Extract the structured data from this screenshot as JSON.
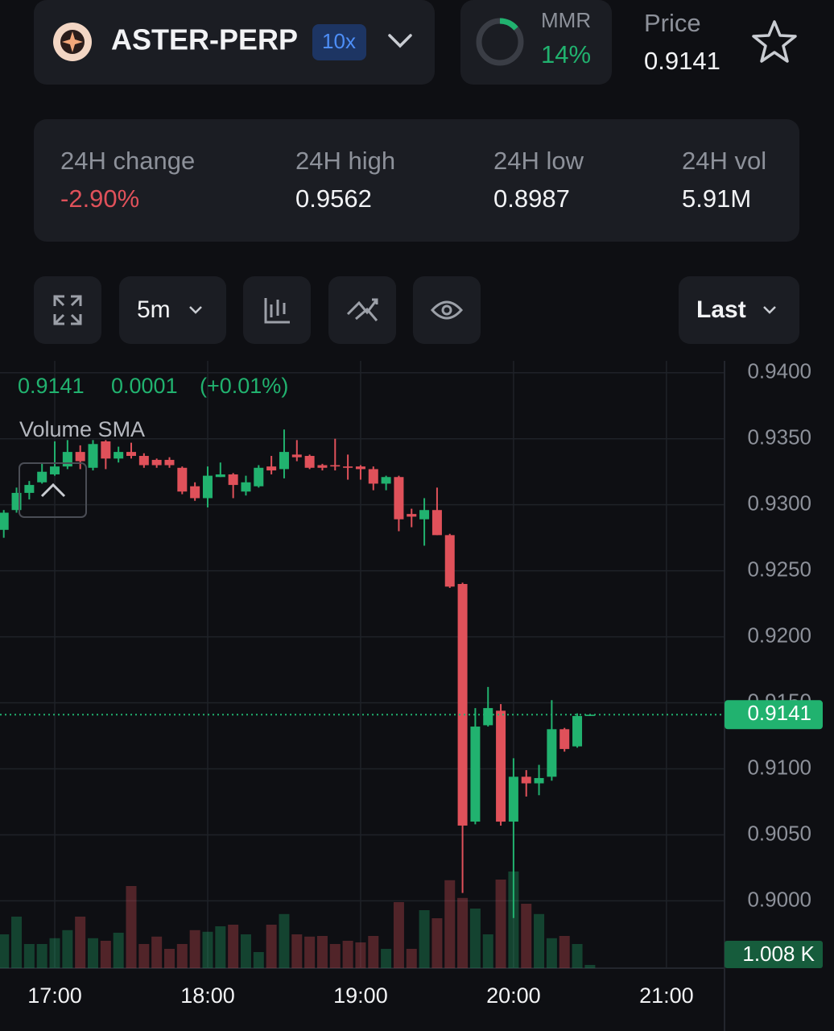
{
  "header": {
    "pair": "ASTER-PERP",
    "leverage": "10x",
    "mmr": {
      "label": "MMR",
      "value": 14,
      "value_label": "14%"
    },
    "price_label": "Price",
    "price": "0.9141"
  },
  "stats": [
    {
      "label": "24H change",
      "value": "-2.90%"
    },
    {
      "label": "24H high",
      "value": "0.9562"
    },
    {
      "label": "24H low",
      "value": "0.8987"
    },
    {
      "label": "24H vol",
      "value": "5.91M"
    }
  ],
  "toolbar": {
    "interval": "5m",
    "price_source": "Last"
  },
  "chart_data": {
    "type": "candlestick",
    "legend": {
      "price": "0.9141",
      "change": "0.0001",
      "change_pct": "(+0.01%)",
      "indicator": "Volume SMA"
    },
    "up_color": "#21b26f",
    "down_color": "#e0515a",
    "categories": [
      null,
      null,
      null,
      null,
      "17:00",
      null,
      null,
      null,
      null,
      null,
      null,
      null,
      null,
      null,
      null,
      null,
      "18:00",
      null,
      null,
      null,
      null,
      null,
      null,
      null,
      null,
      null,
      null,
      null,
      "19:00",
      null,
      null,
      null,
      null,
      null,
      null,
      null,
      null,
      null,
      null,
      null,
      "20:00",
      null,
      null,
      null,
      null,
      null,
      null,
      null,
      null,
      null,
      null,
      null,
      "21:00"
    ],
    "open": [
      0.9281,
      0.9296,
      0.9309,
      0.9317,
      0.9323,
      0.9329,
      0.934,
      0.9328,
      0.9348,
      0.9335,
      0.934,
      0.9337,
      0.9334,
      0.9334,
      0.9328,
      0.9314,
      0.9305,
      0.9321,
      0.9323,
      0.931,
      0.9314,
      0.9329,
      0.9327,
      0.9338,
      0.9337,
      0.933,
      0.933,
      0.9329,
      0.9329,
      0.9327,
      0.9316,
      0.9321,
      0.9293,
      0.9289,
      0.9296,
      0.9277,
      0.924,
      0.906,
      0.9133,
      0.9144,
      0.906,
      0.9094,
      0.9089,
      0.9094,
      0.913,
      0.9117,
      0.914,
      null,
      null,
      null,
      null,
      null,
      null
    ],
    "high": [
      0.9296,
      0.9313,
      0.9318,
      0.9331,
      0.9348,
      0.9349,
      0.9345,
      0.9349,
      0.9349,
      0.9344,
      0.9347,
      0.9339,
      0.9335,
      0.9336,
      0.9329,
      0.9317,
      0.9329,
      0.9332,
      0.9324,
      0.9322,
      0.933,
      0.9337,
      0.9357,
      0.9349,
      0.9338,
      0.9331,
      0.935,
      0.9338,
      0.933,
      0.9329,
      0.9322,
      0.9322,
      0.9297,
      0.9305,
      0.9313,
      0.9278,
      0.9241,
      0.9146,
      0.9162,
      0.9149,
      0.9108,
      0.9099,
      0.9103,
      0.9152,
      0.9131,
      0.9142,
      0.9141,
      null,
      null,
      null,
      null,
      null,
      null
    ],
    "low": [
      0.9275,
      0.9294,
      0.9304,
      0.9316,
      0.9322,
      0.9327,
      0.9327,
      0.9326,
      0.9327,
      0.9332,
      0.9335,
      0.9328,
      0.9328,
      0.9328,
      0.9308,
      0.9303,
      0.9298,
      0.9321,
      0.9305,
      0.9307,
      0.9313,
      0.9323,
      0.932,
      0.9333,
      0.9327,
      0.9326,
      0.9326,
      0.9319,
      0.9319,
      0.9311,
      0.9311,
      0.928,
      0.9283,
      0.9269,
      0.9277,
      0.9237,
      0.9006,
      0.9058,
      0.9132,
      0.9057,
      0.8987,
      0.9079,
      0.908,
      0.9091,
      0.9113,
      0.9116,
      0.914,
      null,
      null,
      null,
      null,
      null,
      null
    ],
    "close": [
      0.9294,
      0.9309,
      0.9315,
      0.9325,
      0.9329,
      0.934,
      0.9333,
      0.9346,
      0.9335,
      0.934,
      0.9337,
      0.933,
      0.933,
      0.933,
      0.931,
      0.9305,
      0.9322,
      0.9323,
      0.9315,
      0.9317,
      0.9328,
      0.9326,
      0.934,
      0.9336,
      0.9328,
      0.9328,
      0.9329,
      0.9328,
      0.9327,
      0.9316,
      0.9321,
      0.9289,
      0.9291,
      0.9296,
      0.9277,
      0.9238,
      0.9057,
      0.9132,
      0.9146,
      0.906,
      0.9094,
      0.9089,
      0.9093,
      0.913,
      0.9115,
      0.914,
      0.9141,
      null,
      null,
      null,
      null,
      null,
      null
    ],
    "volume": [
      10.5,
      16,
      7.5,
      7.5,
      9.3,
      11.8,
      16,
      9.3,
      8.5,
      11,
      25.5,
      7.5,
      9.8,
      6,
      7.5,
      11.8,
      11.3,
      13,
      13.5,
      10.5,
      5,
      13.5,
      16.8,
      10.5,
      9.8,
      10,
      7.5,
      8.5,
      8,
      10,
      6,
      20.5,
      6,
      18,
      15.5,
      27.3,
      21.8,
      18.5,
      10.5,
      27.5,
      30,
      20,
      16.8,
      9.3,
      10,
      7.5,
      1.008,
      null,
      null,
      null,
      null,
      null,
      null
    ],
    "ylim": [
      0.8949,
      0.9409
    ],
    "yticks": [
      {
        "value": 0.9,
        "label": "0.9000"
      },
      {
        "value": 0.905,
        "label": "0.9050"
      },
      {
        "value": 0.91,
        "label": "0.9100"
      },
      {
        "value": 0.915,
        "label": "0.9150"
      },
      {
        "value": 0.92,
        "label": "0.9200"
      },
      {
        "value": 0.925,
        "label": "0.9250"
      },
      {
        "value": 0.93,
        "label": "0.9300"
      },
      {
        "value": 0.935,
        "label": "0.9350"
      },
      {
        "value": 0.94,
        "label": "0.9400"
      }
    ],
    "volume_ylim": [
      0,
      75
    ],
    "grid": true,
    "last_price": 0.9141,
    "last_volume": {
      "value": 1.008,
      "label": "1.008 K"
    }
  }
}
